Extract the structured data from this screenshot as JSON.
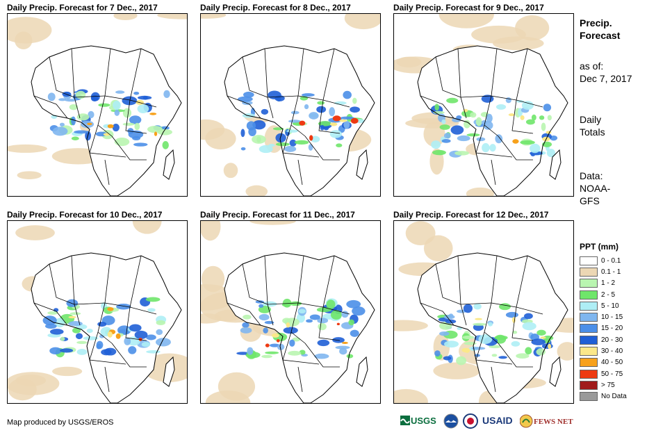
{
  "panels": [
    {
      "title": "Daily Precip. Forecast for 7 Dec., 2017"
    },
    {
      "title": "Daily Precip. Forecast for 8 Dec., 2017"
    },
    {
      "title": "Daily Precip. Forecast for 9 Dec., 2017"
    },
    {
      "title": "Daily Precip. Forecast for 10 Dec., 2017"
    },
    {
      "title": "Daily Precip. Forecast for 11 Dec., 2017"
    },
    {
      "title": "Daily Precip. Forecast for 12 Dec., 2017"
    }
  ],
  "sidebar": {
    "heading_1": "Precip.",
    "heading_2": "Forecast",
    "asof_1": "as of:",
    "asof_2": "Dec 7, 2017",
    "totals_1": "Daily",
    "totals_2": "Totals",
    "data_1": "Data:",
    "data_2": "NOAA-",
    "data_3": "GFS"
  },
  "legend": {
    "title": "PPT (mm)",
    "items": [
      {
        "label": "0 - 0.1",
        "color": "#ffffff"
      },
      {
        "label": "0.1 - 1",
        "color": "#ecd7b4"
      },
      {
        "label": "1 - 2",
        "color": "#b9f5b0"
      },
      {
        "label": "2 - 5",
        "color": "#6fe66a"
      },
      {
        "label": "5 - 10",
        "color": "#aeeef5"
      },
      {
        "label": "10 - 15",
        "color": "#7fb6ef"
      },
      {
        "label": "15 - 20",
        "color": "#4b8fe8"
      },
      {
        "label": "20 - 30",
        "color": "#1f5fd6"
      },
      {
        "label": "30 - 40",
        "color": "#fbe88a"
      },
      {
        "label": "40 - 50",
        "color": "#f7a11b"
      },
      {
        "label": "50 - 75",
        "color": "#ee3a12"
      },
      {
        "label": "> 75",
        "color": "#a01b1b"
      },
      {
        "label": "No Data",
        "color": "#9a9a9a"
      }
    ]
  },
  "credit": "Map produced by USGS/EROS",
  "logos": [
    "USGS",
    "NOAA",
    "USAID",
    "FEWS NET"
  ]
}
